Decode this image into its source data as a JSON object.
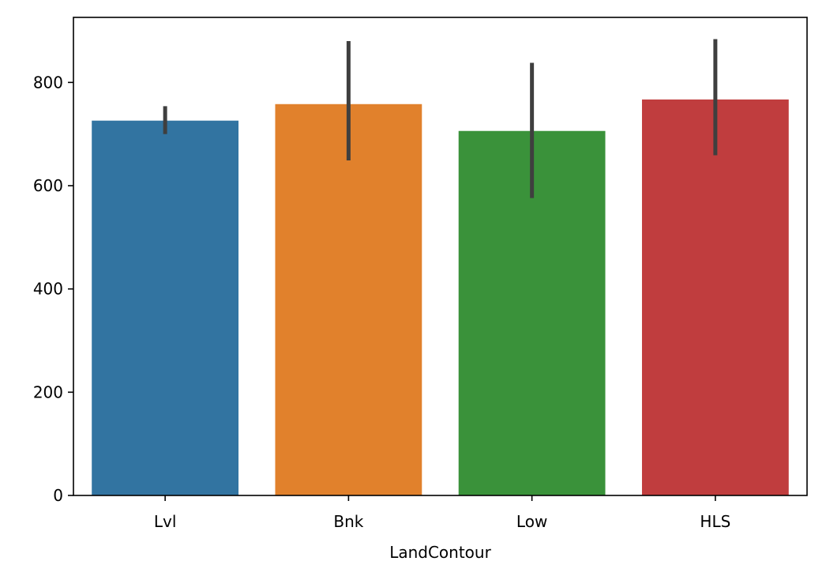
{
  "chart_data": {
    "type": "bar",
    "title": "",
    "xlabel": "LandContour",
    "ylabel": "",
    "categories": [
      "Lvl",
      "Bnk",
      "Low",
      "HLS"
    ],
    "values": [
      726,
      758,
      706,
      767
    ],
    "error_bars": [
      {
        "low": 700,
        "high": 754
      },
      {
        "low": 649,
        "high": 880
      },
      {
        "low": 576,
        "high": 838
      },
      {
        "low": 659,
        "high": 884
      }
    ],
    "colors": [
      "#3274a1",
      "#e1812c",
      "#3a923a",
      "#c03d3e"
    ],
    "error_bar_color": "#3f3f3f",
    "ylim": [
      0,
      926
    ],
    "yticks": [
      0,
      200,
      400,
      600,
      800
    ],
    "ytick_labels": [
      "0",
      "200",
      "400",
      "600",
      "800"
    ],
    "grid": false,
    "legend": "none"
  }
}
